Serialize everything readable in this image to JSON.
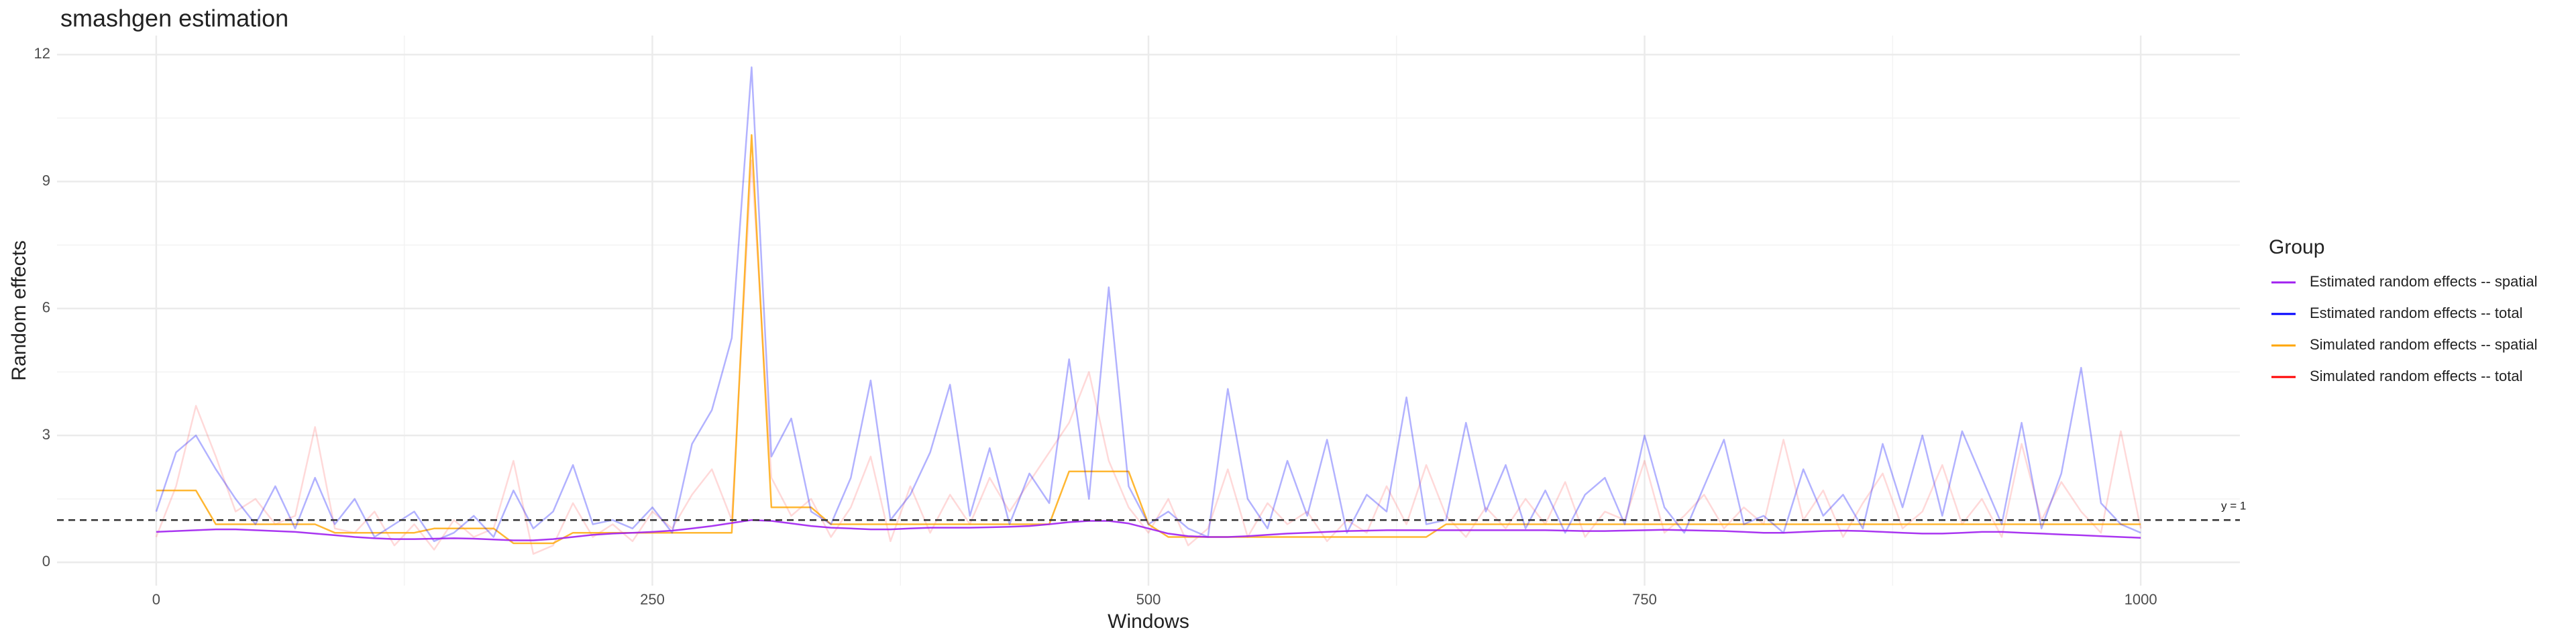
{
  "chart_data": {
    "type": "line",
    "title": "smashgen estimation",
    "x_label": "Windows",
    "y_label": "Random effects",
    "legend_title": "Group",
    "legend_position": "right",
    "x": [
      0,
      10,
      20,
      30,
      40,
      50,
      60,
      70,
      80,
      90,
      100,
      110,
      120,
      130,
      140,
      150,
      160,
      170,
      180,
      190,
      200,
      210,
      220,
      230,
      240,
      250,
      260,
      270,
      280,
      290,
      300,
      310,
      320,
      330,
      340,
      350,
      360,
      370,
      380,
      390,
      400,
      410,
      420,
      430,
      440,
      450,
      460,
      470,
      480,
      490,
      500,
      510,
      520,
      530,
      540,
      550,
      560,
      570,
      580,
      590,
      600,
      610,
      620,
      630,
      640,
      650,
      660,
      670,
      680,
      690,
      700,
      710,
      720,
      730,
      740,
      750,
      760,
      770,
      780,
      790,
      800,
      810,
      820,
      830,
      840,
      850,
      860,
      870,
      880,
      890,
      900,
      910,
      920,
      930,
      940,
      950,
      960,
      970,
      980,
      990,
      1000
    ],
    "series": [
      {
        "name": "Estimated random effects -- spatial",
        "color": "#a020f0",
        "opacity": 0.9,
        "values": [
          0.72,
          0.74,
          0.76,
          0.78,
          0.78,
          0.76,
          0.74,
          0.72,
          0.68,
          0.64,
          0.6,
          0.57,
          0.55,
          0.55,
          0.56,
          0.57,
          0.56,
          0.54,
          0.52,
          0.52,
          0.55,
          0.6,
          0.65,
          0.68,
          0.7,
          0.72,
          0.75,
          0.8,
          0.86,
          0.93,
          1.0,
          0.98,
          0.92,
          0.86,
          0.82,
          0.8,
          0.78,
          0.78,
          0.8,
          0.82,
          0.82,
          0.82,
          0.83,
          0.84,
          0.86,
          0.9,
          0.95,
          0.98,
          0.98,
          0.92,
          0.8,
          0.68,
          0.62,
          0.6,
          0.6,
          0.62,
          0.65,
          0.68,
          0.7,
          0.72,
          0.74,
          0.75,
          0.76,
          0.76,
          0.76,
          0.76,
          0.76,
          0.76,
          0.76,
          0.76,
          0.76,
          0.75,
          0.74,
          0.74,
          0.75,
          0.76,
          0.77,
          0.76,
          0.75,
          0.74,
          0.72,
          0.7,
          0.7,
          0.72,
          0.74,
          0.75,
          0.74,
          0.72,
          0.7,
          0.68,
          0.68,
          0.7,
          0.72,
          0.72,
          0.7,
          0.68,
          0.66,
          0.64,
          0.62,
          0.6,
          0.58
        ]
      },
      {
        "name": "Estimated random effects -- total",
        "color": "#0000ff",
        "opacity": 0.3,
        "values": [
          1.2,
          2.6,
          3.0,
          2.2,
          1.5,
          0.9,
          1.8,
          0.8,
          2.0,
          0.9,
          1.5,
          0.6,
          0.9,
          1.2,
          0.5,
          0.7,
          1.1,
          0.6,
          1.7,
          0.8,
          1.2,
          2.3,
          0.9,
          1.0,
          0.8,
          1.3,
          0.7,
          2.8,
          3.6,
          5.3,
          11.7,
          2.5,
          3.4,
          1.2,
          0.9,
          2.0,
          4.3,
          1.0,
          1.6,
          2.6,
          4.2,
          1.1,
          2.7,
          0.9,
          2.1,
          1.4,
          4.8,
          1.5,
          6.5,
          1.8,
          0.9,
          1.2,
          0.8,
          0.6,
          4.1,
          1.5,
          0.8,
          2.4,
          1.1,
          2.9,
          0.7,
          1.6,
          1.2,
          3.9,
          0.9,
          1.0,
          3.3,
          1.2,
          2.3,
          0.8,
          1.7,
          0.7,
          1.6,
          2.0,
          0.9,
          3.0,
          1.3,
          0.7,
          1.8,
          2.9,
          0.9,
          1.1,
          0.7,
          2.2,
          1.1,
          1.6,
          0.8,
          2.8,
          1.3,
          3.0,
          1.1,
          3.1,
          2.0,
          0.9,
          3.3,
          0.8,
          2.1,
          4.6,
          1.4,
          0.9,
          0.7
        ]
      },
      {
        "name": "Simulated random effects -- spatial",
        "color": "#ffa500",
        "opacity": 0.8,
        "values": [
          1.7,
          1.7,
          1.7,
          0.9,
          0.9,
          0.9,
          0.9,
          0.9,
          0.9,
          0.7,
          0.7,
          0.7,
          0.7,
          0.7,
          0.8,
          0.8,
          0.8,
          0.8,
          0.45,
          0.45,
          0.45,
          0.7,
          0.7,
          0.7,
          0.7,
          0.7,
          0.7,
          0.7,
          0.7,
          0.7,
          10.1,
          1.3,
          1.3,
          1.3,
          0.9,
          0.9,
          0.9,
          0.9,
          0.9,
          0.9,
          0.9,
          0.9,
          0.9,
          0.9,
          0.9,
          0.9,
          2.15,
          2.15,
          2.15,
          2.15,
          0.9,
          0.6,
          0.6,
          0.6,
          0.6,
          0.6,
          0.6,
          0.6,
          0.6,
          0.6,
          0.6,
          0.6,
          0.6,
          0.6,
          0.6,
          0.9,
          0.9,
          0.9,
          0.9,
          0.9,
          0.9,
          0.9,
          0.9,
          0.9,
          0.9,
          0.9,
          0.9,
          0.9,
          0.9,
          0.9,
          0.9,
          0.9,
          0.9,
          0.9,
          0.9,
          0.9,
          0.9,
          0.9,
          0.9,
          0.9,
          0.9,
          0.9,
          0.9,
          0.9,
          0.9,
          0.9,
          0.9,
          0.9,
          0.9,
          0.9,
          0.9
        ]
      },
      {
        "name": "Simulated random effects -- total",
        "color": "#ff0000",
        "opacity": 0.15,
        "values": [
          0.6,
          1.8,
          3.7,
          2.5,
          1.2,
          1.5,
          0.9,
          1.1,
          3.2,
          0.8,
          0.7,
          1.2,
          0.4,
          0.9,
          0.3,
          1.0,
          0.6,
          0.8,
          2.4,
          0.2,
          0.4,
          1.4,
          0.6,
          0.9,
          0.5,
          1.2,
          0.8,
          1.6,
          2.2,
          1.0,
          9.5,
          2.0,
          1.1,
          1.5,
          0.6,
          1.3,
          2.5,
          0.5,
          1.8,
          0.7,
          1.6,
          0.9,
          2.0,
          1.2,
          1.9,
          2.6,
          3.3,
          4.5,
          2.4,
          1.3,
          0.7,
          1.5,
          0.4,
          0.8,
          2.2,
          0.6,
          1.4,
          0.9,
          1.2,
          0.5,
          1.0,
          0.7,
          1.8,
          0.9,
          2.3,
          1.1,
          0.6,
          1.3,
          0.8,
          1.5,
          0.9,
          1.9,
          0.6,
          1.2,
          1.0,
          2.4,
          0.7,
          1.1,
          1.6,
          0.8,
          1.3,
          0.9,
          2.9,
          1.0,
          1.7,
          0.6,
          1.4,
          2.1,
          0.8,
          1.2,
          2.3,
          0.9,
          1.5,
          0.6,
          2.8,
          1.0,
          1.9,
          1.2,
          0.7,
          3.1,
          0.8
        ]
      }
    ],
    "draw_order": [
      3,
      2,
      1,
      0
    ],
    "hline": {
      "value": 1,
      "label": "y = 1",
      "color": "#333333"
    },
    "xlim": [
      -50,
      1050
    ],
    "ylim": [
      -0.55,
      12.45
    ],
    "xticks": [
      0,
      250,
      500,
      750,
      1000
    ],
    "yticks": [
      0,
      3,
      6,
      9,
      12
    ],
    "x_minor": [
      125,
      375,
      625,
      875
    ],
    "y_minor": [
      1.5,
      4.5,
      7.5,
      10.5
    ],
    "grid": true
  }
}
